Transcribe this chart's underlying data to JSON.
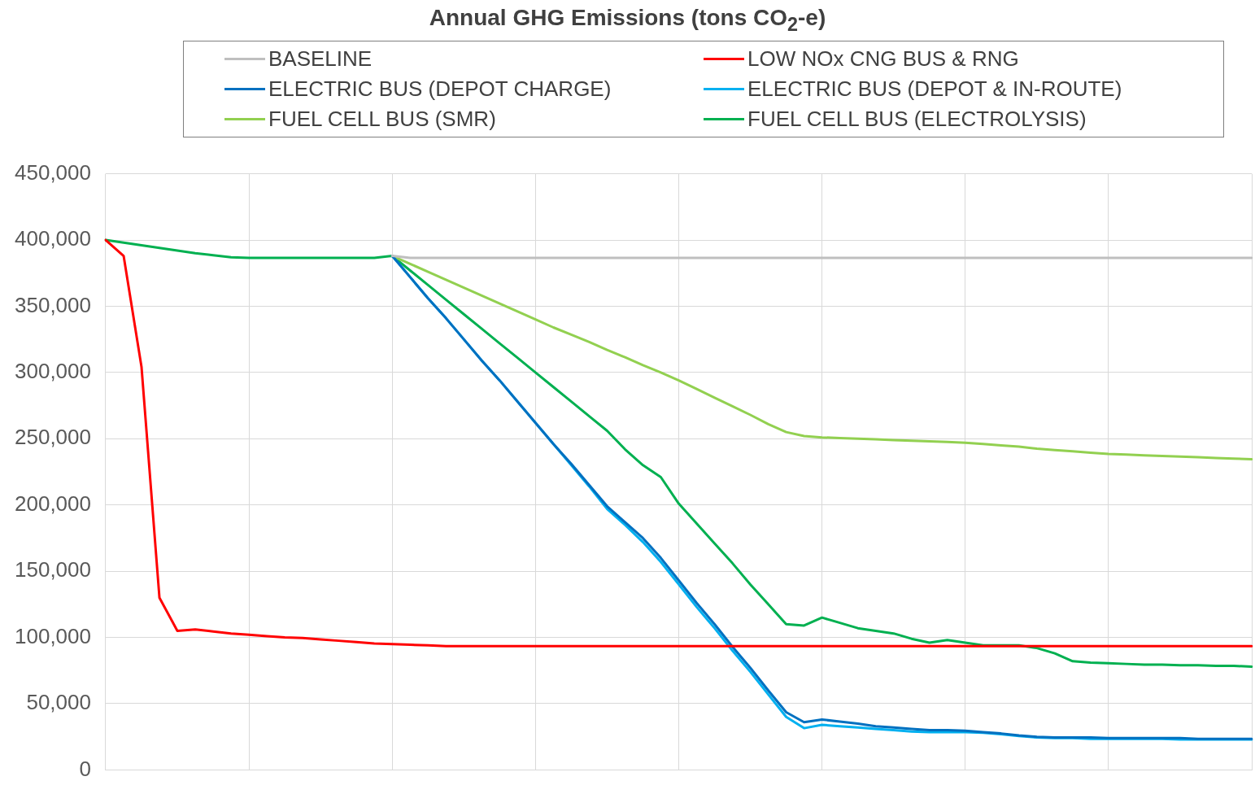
{
  "chart_data": {
    "type": "line",
    "title": "Annual GHG Emissions (tons CO$_{2}$-e)",
    "categories": [
      null,
      null,
      null,
      null,
      null,
      null,
      null,
      null,
      null,
      null,
      null,
      null,
      null,
      null,
      null,
      null,
      null,
      null,
      null,
      null,
      null,
      null,
      null,
      null,
      null,
      null,
      null,
      null,
      null,
      null,
      null,
      null,
      null,
      null,
      null,
      null,
      null,
      null,
      null,
      null,
      null,
      null,
      null,
      null,
      null,
      null,
      null,
      null,
      null,
      null,
      null,
      null,
      null,
      null,
      null,
      null,
      null,
      null,
      null,
      null,
      null,
      null,
      null,
      null,
      null
    ],
    "ylim": [
      0,
      450000
    ],
    "yticks": [
      0,
      {
        "value": 50000,
        "label": "50,000"
      },
      {
        "value": 100000,
        "label": "100,000"
      },
      {
        "value": 150000,
        "label": "150,000"
      },
      {
        "value": 200000,
        "label": "200,000"
      },
      {
        "value": 250000,
        "label": "250,000"
      },
      {
        "value": 300000,
        "label": "300,000"
      },
      {
        "value": 350000,
        "label": "350,000"
      },
      {
        "value": 400000,
        "label": "400,000"
      },
      {
        "value": 450000,
        "label": "450,000"
      }
    ],
    "tick_labels": "y",
    "grid": true,
    "legend": "top",
    "marker": "none",
    "line_style": "solid",
    "series": [
      {
        "name": "BASELINE",
        "color": "#bfbfbf",
        "values": [
          null,
          null,
          null,
          null,
          null,
          null,
          null,
          null,
          null,
          null,
          null,
          null,
          null,
          null,
          null,
          null,
          388000,
          386500,
          386500,
          386500,
          386500,
          386500,
          386500,
          386500,
          386500,
          386500,
          386500,
          386500,
          386500,
          386500,
          386500,
          386500,
          386500,
          386500,
          386500,
          386500,
          386500,
          386500,
          386500,
          386500,
          386500,
          386500,
          386500,
          386500,
          386500,
          386500,
          386500,
          386500,
          386500,
          386500,
          386500,
          386500,
          386500,
          386500,
          386500,
          386500,
          386500,
          386500,
          386500,
          386500,
          386500,
          386500,
          386500,
          386500,
          386500
        ]
      },
      {
        "name": "LOW NOx CNG BUS & RNG",
        "color": "#ff0000",
        "values": [
          400000,
          388000,
          304000,
          130000,
          105000,
          106000,
          104500,
          103000,
          102000,
          101000,
          100000,
          99500,
          98500,
          97500,
          96500,
          95500,
          95000,
          94500,
          94000,
          93500,
          93500,
          93500,
          93500,
          93500,
          93500,
          93500,
          93500,
          93500,
          93500,
          93500,
          93500,
          93500,
          93500,
          93500,
          93500,
          93500,
          93500,
          93500,
          93500,
          93500,
          93500,
          93500,
          93500,
          93500,
          93500,
          93500,
          93500,
          93500,
          93500,
          93500,
          93500,
          93500,
          93500,
          93500,
          93500,
          93500,
          93500,
          93500,
          93500,
          93500,
          93500,
          93500,
          93500,
          93500,
          93500
        ]
      },
      {
        "name": "ELECTRIC BUS (DEPOT CHARGE)",
        "color": "#0070c0",
        "values": [
          null,
          null,
          null,
          null,
          null,
          null,
          null,
          null,
          null,
          null,
          null,
          null,
          null,
          null,
          null,
          null,
          388000,
          372000,
          356000,
          341000,
          325000,
          309000,
          294000,
          278000,
          262000,
          246000,
          231000,
          215000,
          199000,
          187000,
          175000,
          160000,
          143000,
          126000,
          110000,
          93000,
          77000,
          60000,
          43500,
          36000,
          38000,
          36500,
          35000,
          33000,
          32000,
          31000,
          30000,
          30000,
          29500,
          28500,
          27500,
          26000,
          25000,
          24500,
          24500,
          24500,
          24000,
          24000,
          24000,
          24000,
          24000,
          23500,
          23500,
          23500,
          23500
        ]
      },
      {
        "name": "ELECTRIC BUS (DEPOT & IN-ROUTE)",
        "color": "#00b0f0",
        "values": [
          null,
          null,
          null,
          null,
          null,
          null,
          null,
          null,
          null,
          null,
          null,
          null,
          null,
          null,
          null,
          null,
          388000,
          372000,
          356000,
          341000,
          325000,
          309000,
          294000,
          278000,
          262000,
          246000,
          230000,
          214000,
          197000,
          185000,
          172000,
          157000,
          140000,
          123000,
          107000,
          90000,
          74000,
          57000,
          40000,
          31500,
          34000,
          33000,
          32000,
          31000,
          30000,
          29000,
          28500,
          28500,
          28500,
          28000,
          27000,
          25500,
          24500,
          24000,
          24000,
          23500,
          23500,
          23500,
          23500,
          23500,
          23000,
          23000,
          23000,
          23000,
          23000
        ]
      },
      {
        "name": "FUEL CELL BUS (SMR)",
        "color": "#92d050",
        "values": [
          null,
          null,
          null,
          null,
          null,
          null,
          null,
          null,
          null,
          null,
          null,
          null,
          null,
          null,
          null,
          null,
          388000,
          382000,
          376000,
          370000,
          364000,
          358000,
          352000,
          346000,
          340000,
          334000,
          328500,
          323000,
          317000,
          311500,
          305500,
          300000,
          294000,
          287500,
          281000,
          274500,
          268000,
          261000,
          255000,
          252000,
          251000,
          250500,
          250000,
          249500,
          249000,
          248500,
          248000,
          247500,
          247000,
          246000,
          245000,
          244000,
          242500,
          241500,
          240500,
          239500,
          238500,
          238000,
          237500,
          237000,
          236500,
          236000,
          235500,
          235000,
          234500
        ]
      },
      {
        "name": "FUEL CELL BUS (ELECTROLYSIS)",
        "color": "#00b050",
        "values": [
          400000,
          398000,
          396000,
          394000,
          392000,
          390000,
          388500,
          387000,
          386500,
          386500,
          386500,
          386500,
          386500,
          386500,
          386500,
          386500,
          388000,
          377000,
          366000,
          355000,
          344000,
          333000,
          322000,
          311000,
          300000,
          289000,
          278000,
          267000,
          256000,
          242000,
          230000,
          221000,
          201000,
          186000,
          171000,
          156000,
          140000,
          125000,
          110000,
          109000,
          115000,
          111000,
          107000,
          105000,
          103000,
          99000,
          96000,
          98000,
          96000,
          94000,
          94000,
          94000,
          92000,
          88000,
          82000,
          81000,
          80500,
          80000,
          79500,
          79500,
          79000,
          79000,
          78500,
          78500,
          78000
        ]
      }
    ]
  }
}
